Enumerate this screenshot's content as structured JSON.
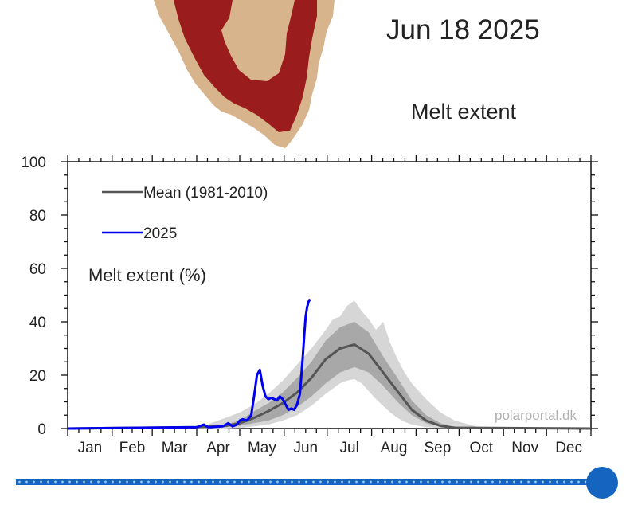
{
  "header": {
    "date": "Jun 18 2025",
    "map_title": "Melt extent"
  },
  "legend": {
    "mean_label": "Mean (1981-2010)",
    "year_label": "2025",
    "position": "top-left"
  },
  "colors": {
    "mean": "#555555",
    "year": "#0000ee",
    "band_inner": "#a8a8a8",
    "band_outer": "#d6d6d6",
    "map_land": "#d8b48c",
    "map_melt": "#9b1c1c"
  },
  "chart_data": {
    "type": "line",
    "ylabel": "Melt extent (%)",
    "ylim": [
      0,
      100
    ],
    "xlim": [
      0,
      365
    ],
    "y_ticks": [
      "0",
      "20",
      "40",
      "60",
      "80",
      "100"
    ],
    "months": [
      "Jan",
      "Feb",
      "Mar",
      "Apr",
      "May",
      "Jun",
      "Jul",
      "Aug",
      "Sep",
      "Oct",
      "Nov",
      "Dec"
    ],
    "grid": false,
    "watermark": "polarportal.dk",
    "series": [
      {
        "name": "Mean (1981-2010)",
        "x": [
          0,
          90,
          110,
          120,
          130,
          140,
          150,
          160,
          170,
          180,
          190,
          200,
          210,
          220,
          230,
          240,
          250,
          260,
          270,
          365
        ],
        "values": [
          0,
          0.5,
          1,
          2,
          4,
          6.5,
          9.5,
          13.5,
          19,
          26,
          30,
          31.5,
          28,
          21,
          14,
          7,
          3,
          1,
          0.3,
          0
        ]
      },
      {
        "name": "2025",
        "x": [
          0,
          90,
          95,
          98,
          100,
          108,
          112,
          115,
          118,
          120,
          122,
          125,
          128,
          130,
          132,
          134,
          136,
          138,
          140,
          142,
          144,
          146,
          148,
          150,
          152,
          154,
          156,
          158,
          160,
          162,
          163,
          164,
          165,
          166,
          167,
          168,
          169
        ],
        "values": [
          0,
          0.5,
          1.5,
          0.5,
          0.5,
          0.8,
          2,
          0.8,
          1.5,
          3,
          3.5,
          3,
          5,
          12,
          20,
          22,
          16,
          12,
          11,
          11.5,
          11,
          10.5,
          12,
          11,
          9,
          7,
          7.5,
          7,
          9,
          13,
          20,
          27,
          35,
          42,
          45.5,
          47.5,
          48.5
        ]
      }
    ],
    "band_inner": {
      "x": [
        95,
        110,
        120,
        130,
        140,
        150,
        160,
        170,
        180,
        190,
        200,
        210,
        220,
        230,
        240,
        250,
        260,
        270,
        280
      ],
      "low": [
        0,
        0.5,
        1,
        2,
        3,
        5,
        8,
        12,
        17,
        21,
        23,
        21,
        16,
        10,
        5,
        2,
        0.7,
        0.2,
        0
      ],
      "high": [
        0,
        1.5,
        3,
        6.5,
        9.5,
        13.5,
        19,
        25,
        33,
        38,
        40,
        36,
        27,
        19,
        10.5,
        5,
        2,
        0.5,
        0
      ]
    },
    "band_outer": {
      "x": [
        90,
        100,
        110,
        120,
        130,
        140,
        150,
        160,
        170,
        180,
        185,
        190,
        195,
        200,
        205,
        210,
        215,
        220,
        225,
        230,
        235,
        240,
        250,
        260,
        270,
        290
      ],
      "low": [
        0,
        0,
        0,
        0.2,
        0.8,
        1.5,
        3,
        5,
        8.5,
        13,
        15,
        17,
        18,
        18.5,
        17,
        14,
        11,
        8.5,
        6,
        4,
        2.5,
        1.5,
        0.5,
        0.2,
        0,
        0
      ],
      "high": [
        0,
        2,
        4,
        6,
        9,
        13,
        18,
        24,
        30,
        37,
        41,
        42,
        46,
        48,
        44,
        41,
        37,
        40,
        32,
        26,
        21,
        17,
        11,
        6,
        3,
        0
      ]
    }
  }
}
